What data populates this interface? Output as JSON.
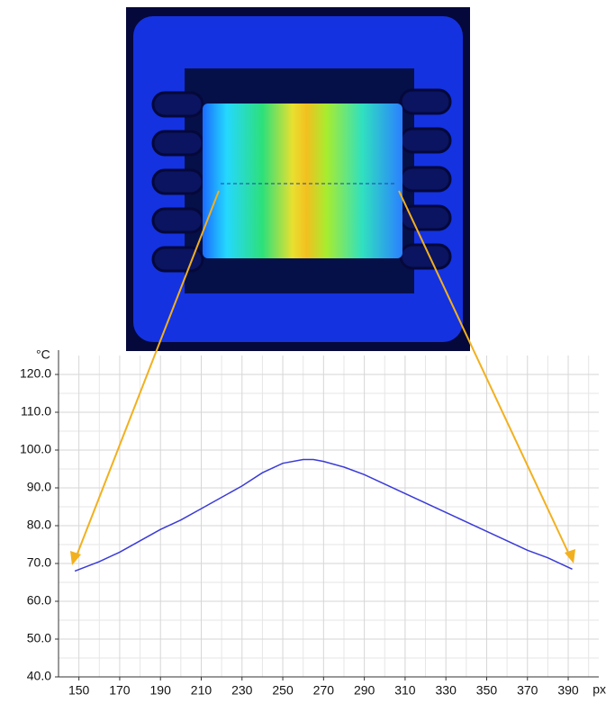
{
  "chart_data": {
    "type": "line",
    "ylabel": "°C",
    "xlabel": "px",
    "x": [
      148,
      160,
      170,
      180,
      190,
      200,
      210,
      220,
      230,
      240,
      250,
      260,
      265,
      270,
      280,
      290,
      300,
      310,
      320,
      330,
      340,
      350,
      360,
      370,
      380,
      392
    ],
    "series": [
      {
        "color": "#3a3ad8",
        "values": [
          68,
          70.5,
          73,
          76,
          79,
          81.5,
          84.5,
          87.5,
          90.5,
          94,
          96.5,
          97.5,
          97.5,
          97,
          95.5,
          93.5,
          91,
          88.5,
          86,
          83.5,
          81,
          78.5,
          76,
          73.5,
          71.5,
          68.5
        ]
      }
    ],
    "xlim": [
      140,
      405
    ],
    "ylim": [
      40,
      125
    ],
    "xticks": [
      150,
      170,
      190,
      210,
      230,
      250,
      270,
      290,
      310,
      330,
      350,
      370,
      390
    ],
    "yticks": [
      {
        "value": 40,
        "label": "40.0"
      },
      {
        "value": 50,
        "label": "50.0"
      },
      {
        "value": 60,
        "label": "60.0"
      },
      {
        "value": 70,
        "label": "70.0"
      },
      {
        "value": 80,
        "label": "80.0"
      },
      {
        "value": 90,
        "label": "90.0"
      },
      {
        "value": 100,
        "label": "100.0"
      },
      {
        "value": 110,
        "label": "110.0"
      },
      {
        "value": 120,
        "label": "120.0"
      }
    ],
    "grid": true,
    "minor_grid": true
  }
}
